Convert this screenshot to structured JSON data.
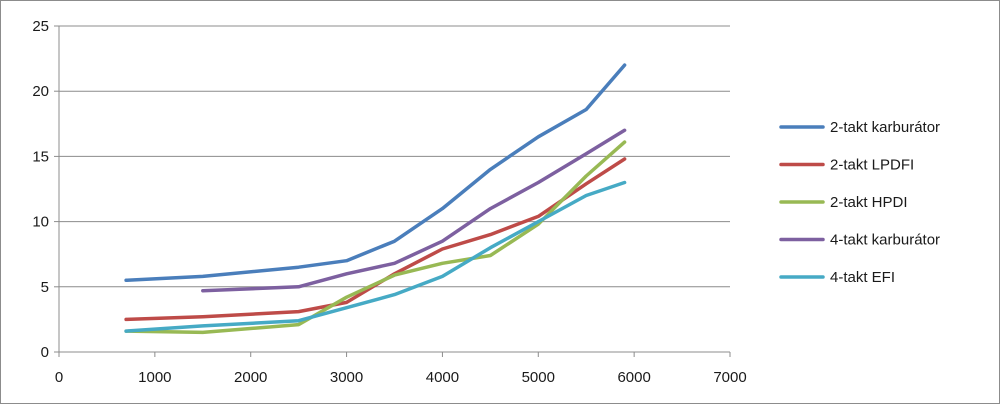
{
  "chart_data": {
    "type": "line",
    "title": "",
    "xlabel": "",
    "ylabel": "",
    "xlim": [
      0,
      7000
    ],
    "ylim": [
      0,
      25
    ],
    "x_ticks": [
      0,
      1000,
      2000,
      3000,
      4000,
      5000,
      6000,
      7000
    ],
    "y_ticks": [
      0,
      5,
      10,
      15,
      20,
      25
    ],
    "x_tick_labels": [
      "0",
      "1000",
      "2000",
      "3000",
      "4000",
      "5000",
      "6000",
      "7000"
    ],
    "y_tick_labels": [
      "0",
      "5",
      "10",
      "15",
      "20",
      "25"
    ],
    "grid": {
      "horizontal": true,
      "vertical": false
    },
    "legend_position": "right",
    "series": [
      {
        "name": "2-takt karburátor",
        "color": "#4a7ebb",
        "points": [
          [
            700,
            5.5
          ],
          [
            1500,
            5.8
          ],
          [
            2500,
            6.5
          ],
          [
            3000,
            7.0
          ],
          [
            3500,
            8.5
          ],
          [
            4000,
            11.0
          ],
          [
            4500,
            14.0
          ],
          [
            5000,
            16.5
          ],
          [
            5500,
            18.6
          ],
          [
            5900,
            22.0
          ]
        ]
      },
      {
        "name": "2-takt LPDFI",
        "color": "#be4b48",
        "points": [
          [
            700,
            2.5
          ],
          [
            1500,
            2.7
          ],
          [
            2500,
            3.1
          ],
          [
            3000,
            3.8
          ],
          [
            3500,
            6.0
          ],
          [
            4000,
            7.9
          ],
          [
            4500,
            9.0
          ],
          [
            5000,
            10.4
          ],
          [
            5500,
            12.9
          ],
          [
            5900,
            14.8
          ]
        ]
      },
      {
        "name": "2-takt HPDI",
        "color": "#98b954",
        "points": [
          [
            700,
            1.6
          ],
          [
            1500,
            1.5
          ],
          [
            2500,
            2.1
          ],
          [
            3000,
            4.2
          ],
          [
            3500,
            5.9
          ],
          [
            4000,
            6.8
          ],
          [
            4500,
            7.4
          ],
          [
            5000,
            9.8
          ],
          [
            5500,
            13.5
          ],
          [
            5900,
            16.1
          ]
        ]
      },
      {
        "name": "4-takt karburátor",
        "color": "#7d60a0",
        "points": [
          [
            1500,
            4.7
          ],
          [
            2500,
            5.0
          ],
          [
            3000,
            6.0
          ],
          [
            3500,
            6.8
          ],
          [
            4000,
            8.5
          ],
          [
            4500,
            11.0
          ],
          [
            5000,
            13.0
          ],
          [
            5500,
            15.2
          ],
          [
            5900,
            17.0
          ]
        ]
      },
      {
        "name": "4-takt EFI",
        "color": "#46aac5",
        "points": [
          [
            700,
            1.6
          ],
          [
            1500,
            2.0
          ],
          [
            2500,
            2.4
          ],
          [
            3000,
            3.4
          ],
          [
            3500,
            4.4
          ],
          [
            4000,
            5.8
          ],
          [
            4500,
            8.0
          ],
          [
            5000,
            10.0
          ],
          [
            5500,
            12.0
          ],
          [
            5900,
            13.0
          ]
        ]
      }
    ]
  }
}
